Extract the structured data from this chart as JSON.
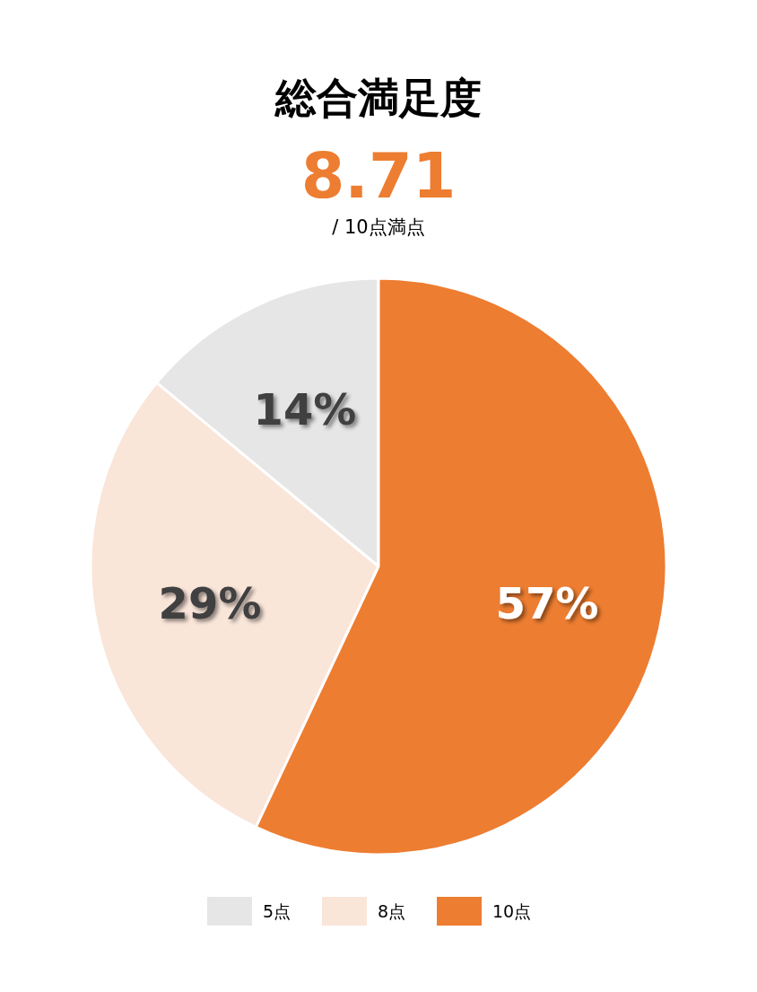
{
  "chart_data": {
    "type": "pie",
    "title": "総合満足度",
    "subtitle": "8.71",
    "annotations": [
      "/ 10点満点"
    ],
    "categories": [
      "5点",
      "8点",
      "10点"
    ],
    "values": [
      14,
      29,
      57
    ],
    "colors": [
      "#e6e6e6",
      "#fae5d9",
      "#ed7d31"
    ],
    "value_labels": [
      "14%",
      "29%",
      "57%"
    ],
    "legend": "bottom"
  }
}
